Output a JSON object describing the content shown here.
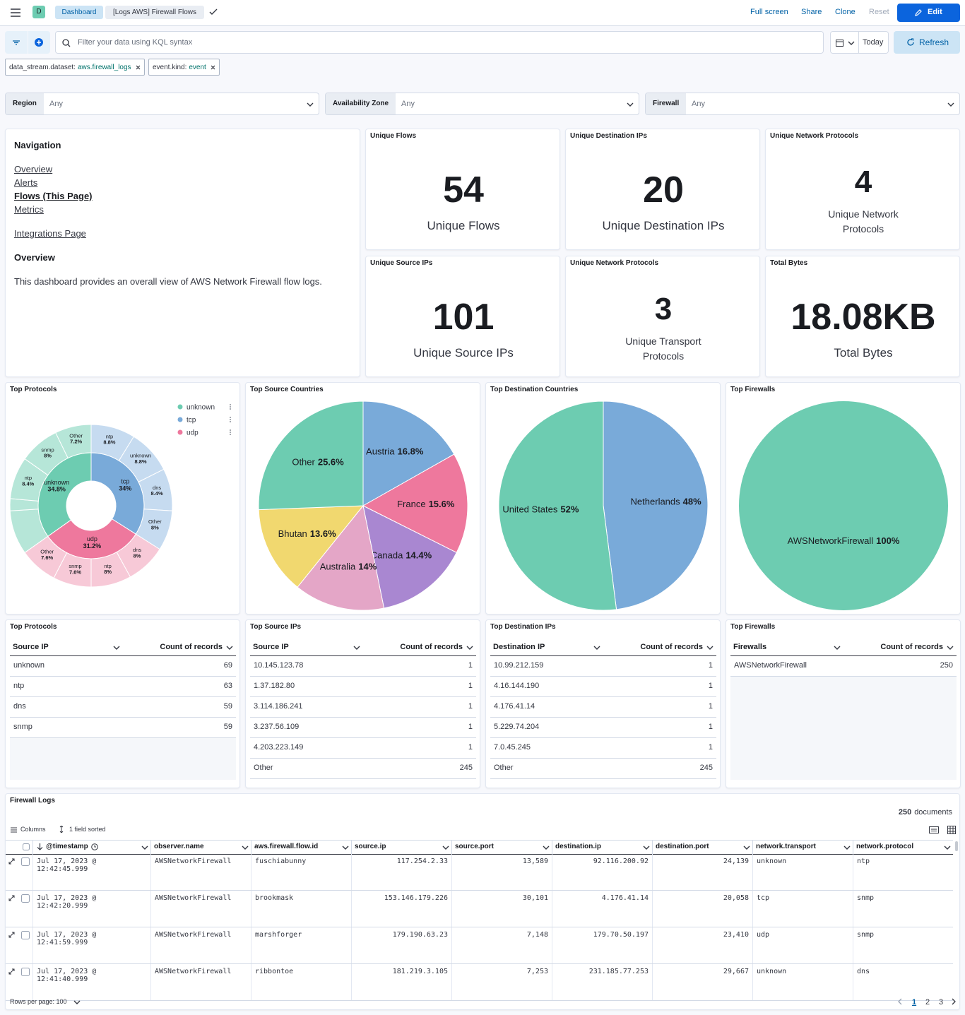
{
  "header": {
    "avatar": "D",
    "breadcrumbs": [
      "Dashboard",
      "[Logs AWS] Firewall Flows"
    ],
    "actions": [
      "Full screen",
      "Share",
      "Clone",
      "Reset"
    ],
    "edit": "Edit"
  },
  "query": {
    "placeholder": "Filter your data using KQL syntax",
    "date": "Today",
    "refresh": "Refresh"
  },
  "filters": [
    {
      "field": "data_stream.dataset:",
      "value": "aws.firewall_logs"
    },
    {
      "field": "event.kind:",
      "value": "event"
    }
  ],
  "controls": [
    {
      "label": "Region",
      "value": "Any"
    },
    {
      "label": "Availability Zone",
      "value": "Any"
    },
    {
      "label": "Firewall",
      "value": "Any"
    }
  ],
  "navigation": {
    "title": "Navigation",
    "links": [
      "Overview",
      "Alerts",
      "Flows (This Page)",
      "Metrics"
    ],
    "integrations": "Integrations Page",
    "subtitle": "Overview",
    "text": "This dashboard provides an overall view of AWS Network Firewall flow logs."
  },
  "metrics": [
    {
      "title": "Unique Flows",
      "value": 54,
      "label": "Unique Flows"
    },
    {
      "title": "Unique Destination IPs",
      "value": 20,
      "label": "Unique Destination IPs"
    },
    {
      "title": "Unique Network Protocols",
      "value": 4,
      "label": "Unique Network Protocols"
    },
    {
      "title": "Unique Source IPs",
      "value": 101,
      "label": "Unique Source IPs"
    },
    {
      "title": "Unique Network Protocols",
      "value": 3,
      "label": "Unique Transport Protocols"
    },
    {
      "title": "Total Bytes",
      "value": "18.08KB",
      "label": "Total Bytes"
    }
  ],
  "chart_data": [
    {
      "type": "sunburst",
      "title": "Top Protocols",
      "series": [
        {
          "name": "unknown",
          "color": "#6dccb1",
          "value": 34.8,
          "value_label": "34.8%",
          "children": {
            "color": "#b6e6d8",
            "categories": [
              null,
              null,
              "ntp",
              "snmp",
              "Other"
            ],
            "values": [
              8.8,
              2.4,
              8.4,
              8,
              7.2
            ],
            "value_labels": [
              null,
              null,
              "8.4%",
              "8%",
              "7.2%"
            ]
          }
        },
        {
          "name": "tcp",
          "color": "#79aad9",
          "value": 34,
          "value_label": "34%",
          "children": {
            "color": "#c6dbf0",
            "categories": [
              "ntp",
              "unknown",
              "dns",
              "Other"
            ],
            "values": [
              8.8,
              8.8,
              8.4,
              8
            ],
            "value_labels": [
              "8.8%",
              "8.8%",
              "8.4%",
              "8%"
            ]
          }
        },
        {
          "name": "udp",
          "color": "#ee789d",
          "value": 31.2,
          "value_label": "31.2%",
          "children": {
            "color": "#f7c9d7",
            "categories": [
              "dns",
              "ntp",
              "snmp",
              "Other"
            ],
            "values": [
              8,
              8,
              7.6,
              7.6
            ],
            "value_labels": [
              "8%",
              "8%",
              "7.6%",
              "7.6%"
            ]
          }
        }
      ]
    },
    {
      "type": "pie",
      "title": "Top Source Countries",
      "categories": [
        "Austria",
        "France",
        "Canada",
        "Australia",
        "Bhutan",
        "Other"
      ],
      "values": [
        16.8,
        15.6,
        14.4,
        14,
        13.6,
        25.6
      ],
      "value_labels": [
        "16.8%",
        "15.6%",
        "14.4%",
        "14%",
        "13.6%",
        "25.6%"
      ],
      "colors": [
        "#79aad9",
        "#ee789d",
        "#a987d1",
        "#e4a6c7",
        "#f1d86f",
        "#6dccb1"
      ]
    },
    {
      "type": "pie",
      "title": "Top Destination Countries",
      "categories": [
        "Netherlands",
        "United States"
      ],
      "values": [
        48,
        52
      ],
      "value_labels": [
        "48%",
        "52%"
      ],
      "colors": [
        "#79aad9",
        "#6dccb1"
      ]
    },
    {
      "type": "pie",
      "title": "Top Firewalls",
      "categories": [
        "AWSNetworkFirewall"
      ],
      "values": [
        100
      ],
      "value_labels": [
        "100%"
      ],
      "colors": [
        "#6dccb1"
      ]
    }
  ],
  "tables": [
    {
      "title": "Top Protocols",
      "columns": [
        "Source IP",
        "Count of records"
      ],
      "rows": [
        [
          "unknown",
          69
        ],
        [
          "ntp",
          63
        ],
        [
          "dns",
          59
        ],
        [
          "snmp",
          59
        ]
      ]
    },
    {
      "title": "Top Source IPs",
      "columns": [
        "Source IP",
        "Count of records"
      ],
      "rows": [
        [
          "10.145.123.78",
          1
        ],
        [
          "1.37.182.80",
          1
        ],
        [
          "3.114.186.241",
          1
        ],
        [
          "3.237.56.109",
          1
        ],
        [
          "4.203.223.149",
          1
        ],
        [
          "Other",
          245
        ]
      ]
    },
    {
      "title": "Top Destination IPs",
      "columns": [
        "Destination IP",
        "Count of records"
      ],
      "rows": [
        [
          "10.99.212.159",
          1
        ],
        [
          "4.16.144.190",
          1
        ],
        [
          "4.176.41.14",
          1
        ],
        [
          "5.229.74.204",
          1
        ],
        [
          "7.0.45.245",
          1
        ],
        [
          "Other",
          245
        ]
      ]
    },
    {
      "title": "Top Firewalls",
      "columns": [
        "Firewalls",
        "Count of records"
      ],
      "rows": [
        [
          "AWSNetworkFirewall",
          250
        ]
      ]
    }
  ],
  "logs": {
    "title": "Firewall Logs",
    "count": 250,
    "count_label": "documents",
    "toolbar": [
      "Columns",
      "1 field sorted"
    ],
    "columns": [
      "@timestamp",
      "observer.name",
      "aws.firewall.flow.id",
      "source.ip",
      "source.port",
      "destination.ip",
      "destination.port",
      "network.transport",
      "network.protocol"
    ],
    "rows": [
      [
        "Jul 17, 2023 @ 12:42:45.999",
        "AWSNetworkFirewall",
        "fuschiabunny",
        "117.254.2.33",
        "13,589",
        "92.116.200.92",
        "24,139",
        "unknown",
        "ntp"
      ],
      [
        "Jul 17, 2023 @ 12:42:20.999",
        "AWSNetworkFirewall",
        "brookmask",
        "153.146.179.226",
        "30,101",
        "4.176.41.14",
        "20,058",
        "tcp",
        "snmp"
      ],
      [
        "Jul 17, 2023 @ 12:41:59.999",
        "AWSNetworkFirewall",
        "marshforger",
        "179.190.63.23",
        "7,148",
        "179.70.50.197",
        "23,410",
        "udp",
        "snmp"
      ],
      [
        "Jul 17, 2023 @ 12:41:40.999",
        "AWSNetworkFirewall",
        "ribbontoe",
        "181.219.3.105",
        "7,253",
        "231.185.77.253",
        "29,667",
        "unknown",
        "dns"
      ]
    ],
    "footer": "Rows per page: 100",
    "pages": [
      1,
      2,
      3
    ]
  }
}
